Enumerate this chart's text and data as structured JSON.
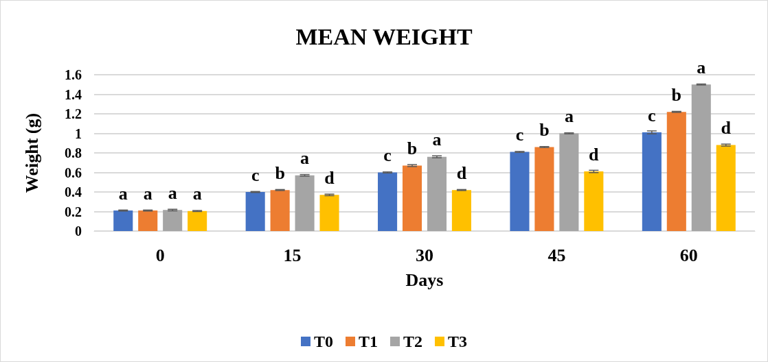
{
  "chart_data": {
    "type": "bar",
    "title": "MEAN WEIGHT",
    "xlabel": "Days",
    "ylabel": "Weight (g)",
    "categories": [
      "0",
      "15",
      "30",
      "45",
      "60"
    ],
    "series": [
      {
        "name": "T0",
        "color": "#4472c4",
        "values": [
          0.21,
          0.4,
          0.6,
          0.81,
          1.01
        ],
        "errors": [
          0.005,
          0.005,
          0.005,
          0.005,
          0.015
        ],
        "value_labels": [
          "a",
          "c",
          "c",
          "c",
          "c"
        ]
      },
      {
        "name": "T1",
        "color": "#ed7d31",
        "values": [
          0.21,
          0.42,
          0.67,
          0.86,
          1.22
        ],
        "errors": [
          0.005,
          0.005,
          0.01,
          0.005,
          0.005
        ],
        "value_labels": [
          "a",
          "b",
          "b",
          "b",
          "b"
        ]
      },
      {
        "name": "T2",
        "color": "#a5a5a5",
        "values": [
          0.215,
          0.57,
          0.76,
          1.0,
          1.5
        ],
        "errors": [
          0.008,
          0.008,
          0.01,
          0.005,
          0.005
        ],
        "value_labels": [
          "a",
          "a",
          "a",
          "a",
          "a"
        ]
      },
      {
        "name": "T3",
        "color": "#ffc000",
        "values": [
          0.205,
          0.37,
          0.42,
          0.61,
          0.88
        ],
        "errors": [
          0.005,
          0.008,
          0.005,
          0.012,
          0.01
        ],
        "value_labels": [
          "a",
          "d",
          "d",
          "d",
          "d"
        ]
      }
    ],
    "ylim": [
      0,
      1.6
    ],
    "yticks": [
      0,
      0.2,
      0.4,
      0.6,
      0.8,
      1,
      1.2,
      1.4,
      1.6
    ],
    "grid": "y",
    "legend": "bottom"
  }
}
